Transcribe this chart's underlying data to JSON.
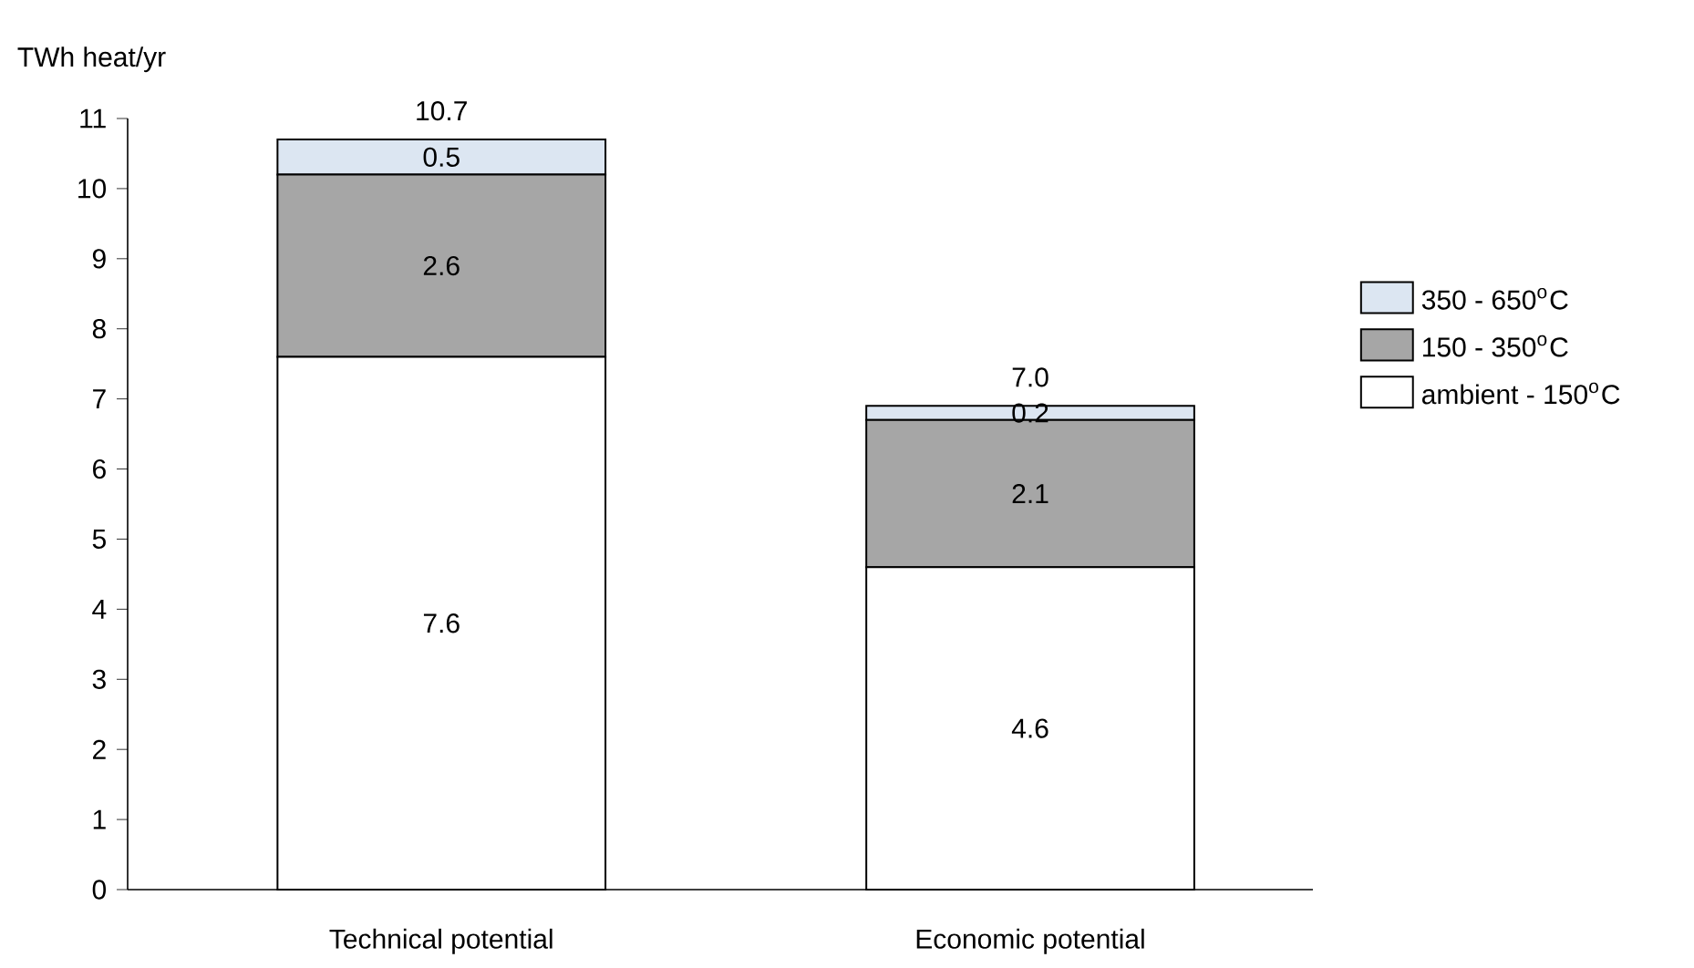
{
  "chart_data": {
    "type": "bar",
    "stacked": true,
    "ylabel": "TWh heat/yr",
    "categories": [
      "Technical potential",
      "Economic potential"
    ],
    "series": [
      {
        "name": "ambient - 150$^{o}$C",
        "color": "#ffffff",
        "values": [
          7.6,
          4.6
        ]
      },
      {
        "name": "150 - 350$^{o}$C",
        "color": "#a6a6a6",
        "values": [
          2.6,
          2.1
        ]
      },
      {
        "name": "350 - 650$^{o}$C",
        "color": "#dce6f2",
        "values": [
          0.5,
          0.2
        ]
      }
    ],
    "totals": [
      "10.7",
      "7.0"
    ],
    "data_labels": true,
    "ylim": [
      0,
      11
    ],
    "yticks": [
      0,
      1,
      2,
      3,
      4,
      5,
      6,
      7,
      8,
      9,
      10,
      11
    ],
    "grid": false,
    "legend": "right"
  }
}
